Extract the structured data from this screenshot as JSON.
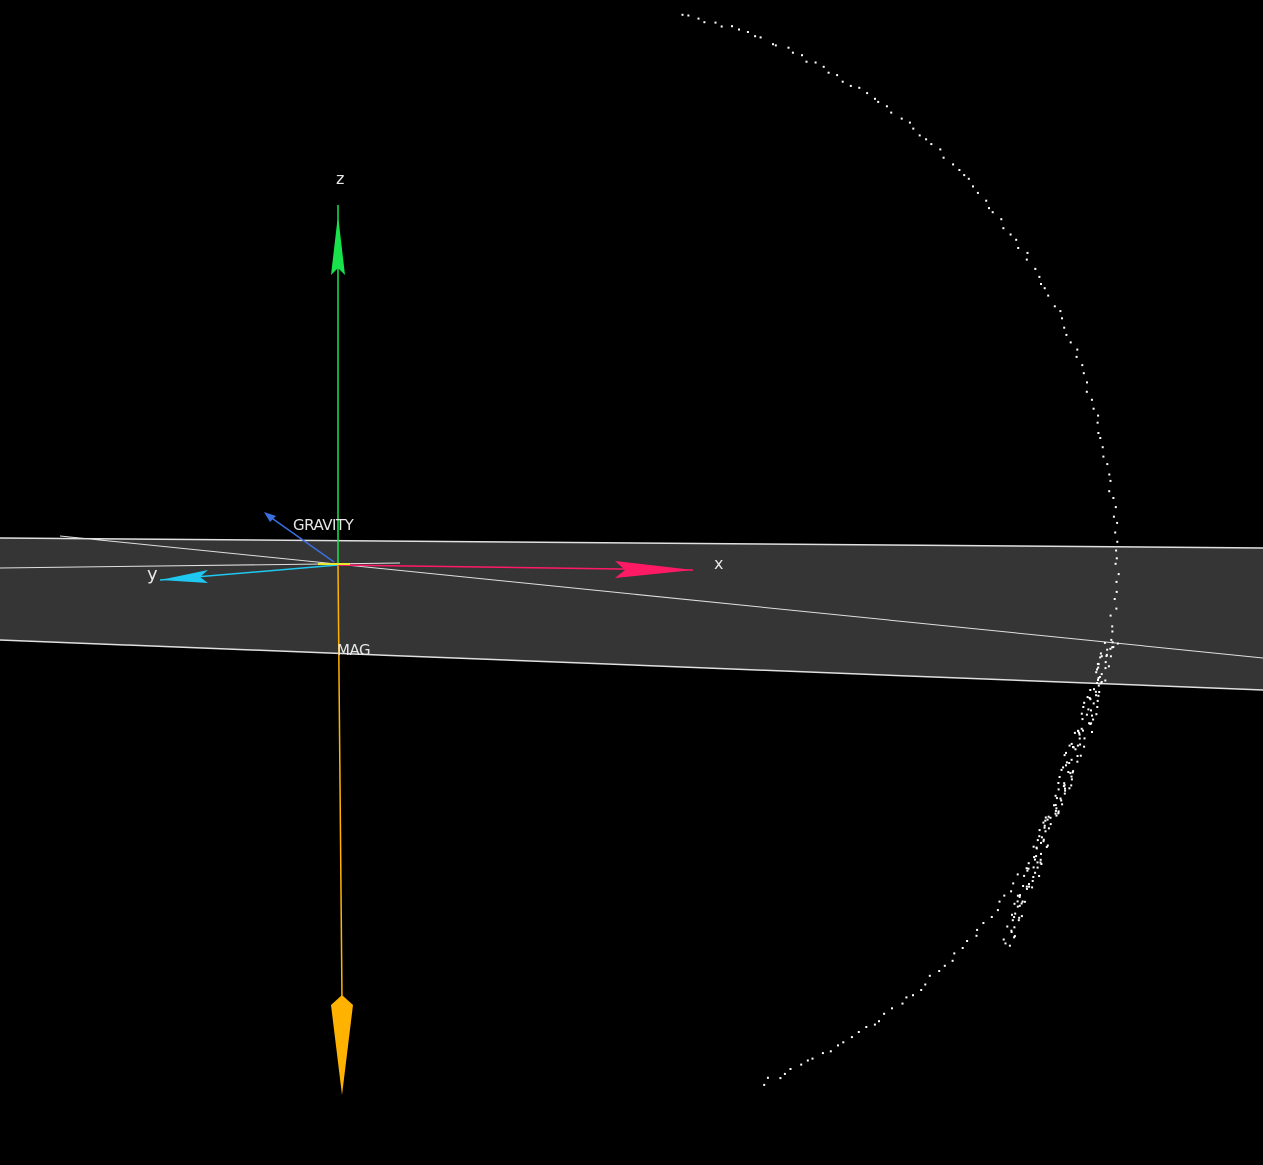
{
  "viewer": {
    "background_color": "#000000",
    "plane_color": "#353535",
    "plane_edge_color": "#e0e0e0",
    "point_color": "#ffffff"
  },
  "axes": {
    "x": {
      "label": "x",
      "color": "#ff1a66"
    },
    "y": {
      "label": "y",
      "color": "#1ec8f0"
    },
    "z": {
      "label": "z",
      "color": "#19e34a"
    }
  },
  "vectors": {
    "gravity": {
      "label": "GRAVITY",
      "color": "#3a6fe0"
    },
    "mag": {
      "label": "MAG",
      "color": "#ffb300"
    }
  }
}
